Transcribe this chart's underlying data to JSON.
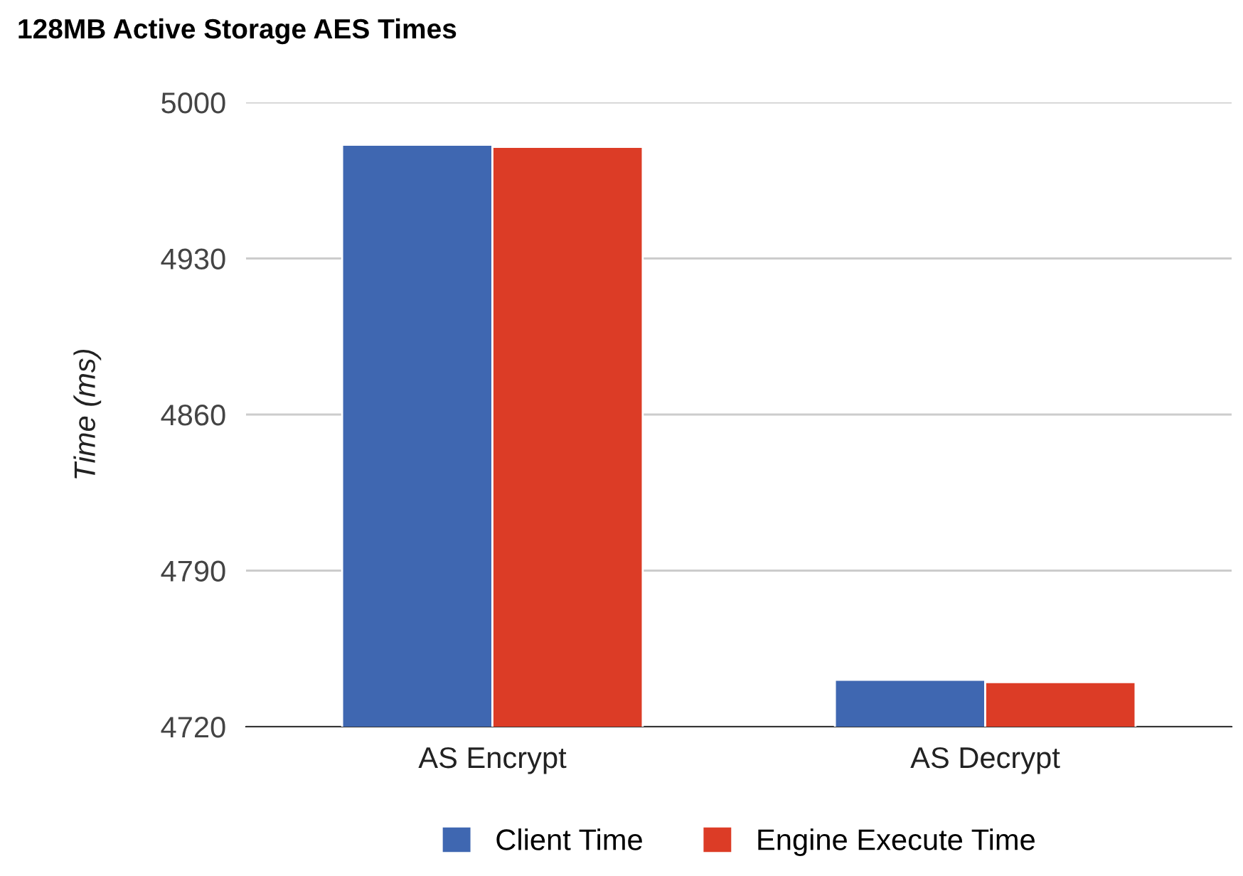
{
  "chart_data": {
    "type": "bar",
    "title": "128MB Active Storage AES Times",
    "ylabel": "Time (ms)",
    "categories": [
      "AS Encrypt",
      "AS Decrypt"
    ],
    "series": [
      {
        "name": "Client Time",
        "color": "#3f67b1",
        "values": [
          4981,
          4741
        ]
      },
      {
        "name": "Engine Execute Time",
        "color": "#dc3c26",
        "values": [
          4980,
          4740
        ]
      }
    ],
    "ylim": [
      4720,
      5000
    ],
    "yticks": [
      4720,
      4790,
      4860,
      4930,
      5000
    ],
    "grid": "y",
    "legend": "bottom"
  }
}
